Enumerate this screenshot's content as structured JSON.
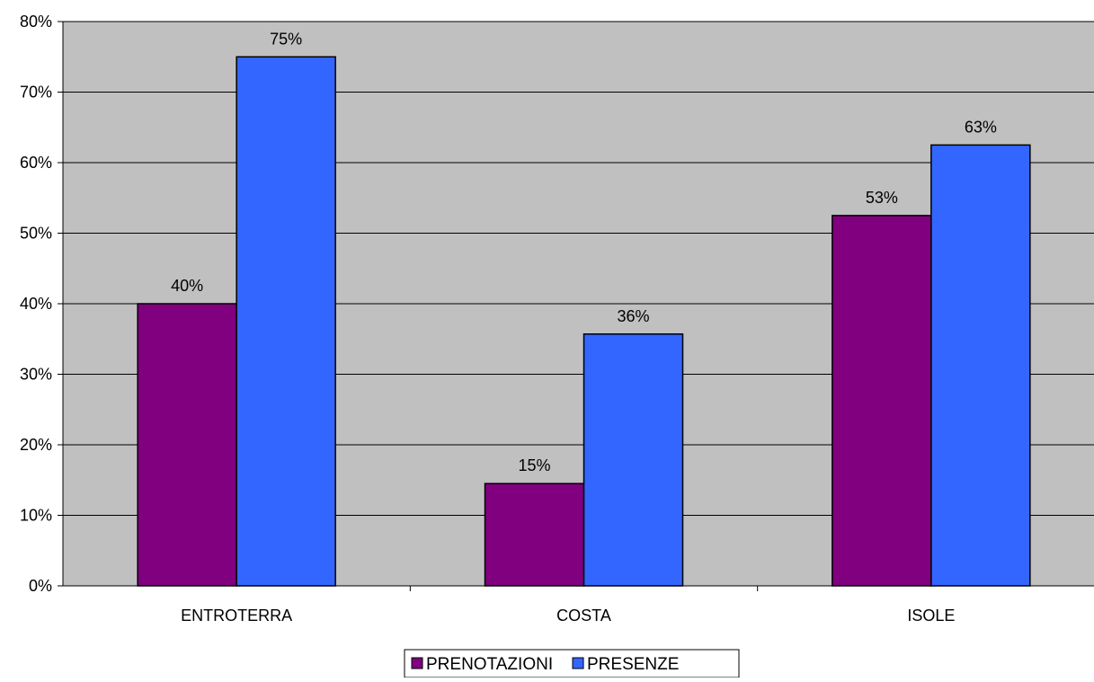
{
  "chart_data": {
    "type": "bar",
    "title": "",
    "xlabel": "",
    "ylabel": "",
    "categories": [
      "ENTROTERRA",
      "COSTA",
      "ISOLE"
    ],
    "series": [
      {
        "name": "PRENOTAZIONI",
        "values": [
          40,
          14.5,
          52.5
        ],
        "labels": [
          "40%",
          "15%",
          "53%"
        ],
        "color": "#800080"
      },
      {
        "name": "PRESENZE",
        "values": [
          75,
          35.7,
          62.5
        ],
        "labels": [
          "75%",
          "36%",
          "63%"
        ],
        "color": "#3366FF"
      }
    ],
    "ylim": [
      0,
      80
    ],
    "yticks": [
      0,
      10,
      20,
      30,
      40,
      50,
      60,
      70,
      80
    ],
    "ytick_labels": [
      "0%",
      "10%",
      "20%",
      "30%",
      "40%",
      "50%",
      "60%",
      "70%",
      "80%"
    ],
    "grid": true,
    "legend_position": "bottom-center",
    "plot_background": "#C0C0C0"
  }
}
